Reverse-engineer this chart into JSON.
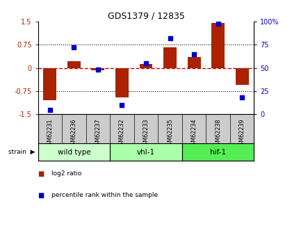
{
  "title": "GDS1379 / 12835",
  "samples": [
    "GSM62231",
    "GSM62236",
    "GSM62237",
    "GSM62232",
    "GSM62233",
    "GSM62235",
    "GSM62234",
    "GSM62238",
    "GSM62239"
  ],
  "log2_ratio": [
    -1.05,
    0.22,
    -0.08,
    -0.95,
    0.12,
    0.68,
    0.35,
    1.45,
    -0.55
  ],
  "percentile_rank": [
    5,
    72,
    48,
    10,
    55,
    82,
    65,
    98,
    18
  ],
  "groups": [
    {
      "label": "wild type",
      "start": 0,
      "end": 3,
      "color": "#ccffcc"
    },
    {
      "label": "vhl-1",
      "start": 3,
      "end": 6,
      "color": "#aaffaa"
    },
    {
      "label": "hif-1",
      "start": 6,
      "end": 9,
      "color": "#55ee55"
    }
  ],
  "ylim_left": [
    -1.5,
    1.5
  ],
  "ylim_right": [
    0,
    100
  ],
  "yticks_left": [
    -1.5,
    -0.75,
    0,
    0.75,
    1.5
  ],
  "ytick_labels_left": [
    "-1.5",
    "-0.75",
    "0",
    "0.75",
    "1.5"
  ],
  "yticks_right": [
    0,
    25,
    50,
    75,
    100
  ],
  "ytick_labels_right": [
    "0",
    "25",
    "50",
    "75",
    "100%"
  ],
  "bar_color": "#aa2200",
  "dot_color": "#0000cc",
  "hline_color": "#cc0000",
  "dotline_color": "black",
  "legend_bar_label": "log2 ratio",
  "legend_dot_label": "percentile rank within the sample",
  "strain_label": "strain",
  "sample_bg": "#cccccc",
  "group_colors": [
    "#ccffcc",
    "#aaffaa",
    "#55ee55"
  ]
}
